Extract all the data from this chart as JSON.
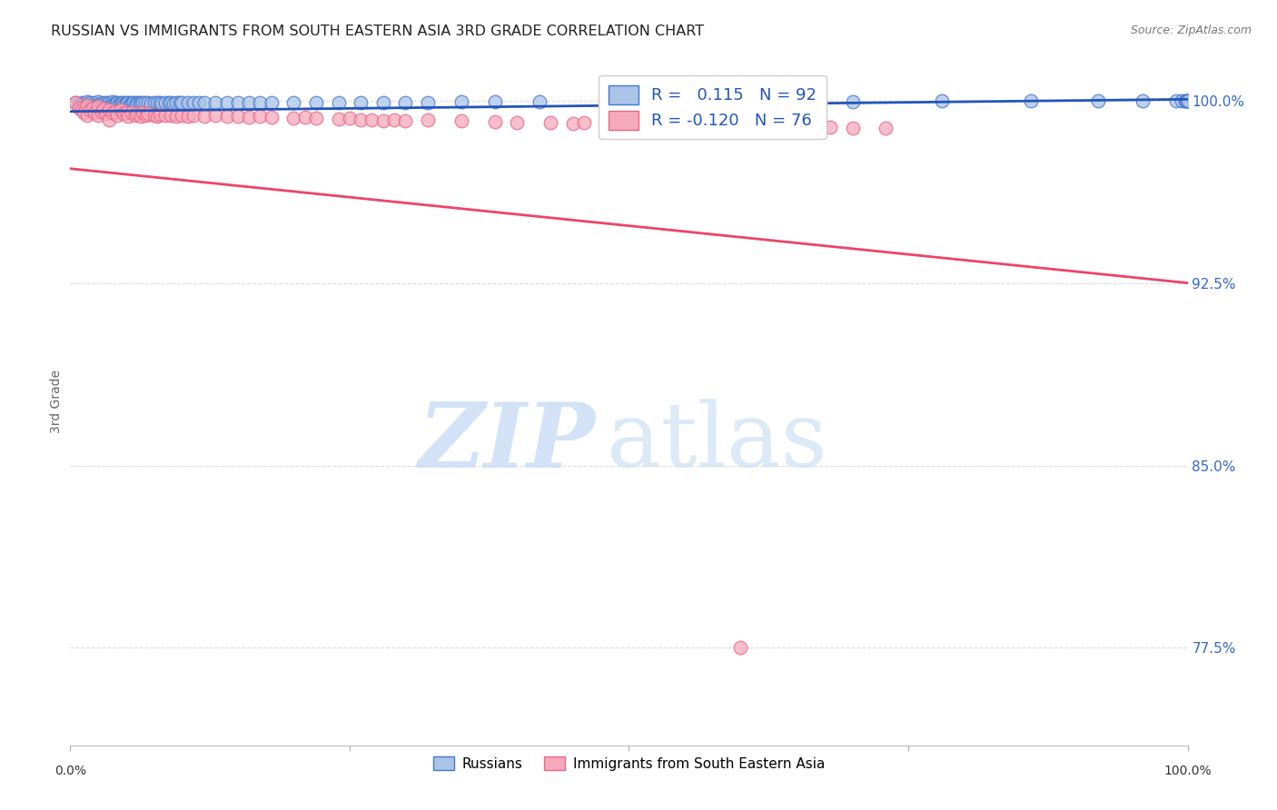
{
  "title": "RUSSIAN VS IMMIGRANTS FROM SOUTH EASTERN ASIA 3RD GRADE CORRELATION CHART",
  "source": "Source: ZipAtlas.com",
  "ylabel": "3rd Grade",
  "ytick_labels": [
    "100.0%",
    "92.5%",
    "85.0%",
    "77.5%"
  ],
  "ytick_values": [
    1.0,
    0.925,
    0.85,
    0.775
  ],
  "xlim": [
    0.0,
    1.0
  ],
  "ylim": [
    0.735,
    1.018
  ],
  "blue_R": 0.115,
  "blue_N": 92,
  "pink_R": -0.12,
  "pink_N": 76,
  "blue_color": "#aac4e8",
  "pink_color": "#f4aabc",
  "blue_edge_color": "#4477cc",
  "pink_edge_color": "#ee6688",
  "blue_line_color": "#2255bb",
  "pink_line_color": "#ee4466",
  "legend_label_blue": "Russians",
  "legend_label_pink": "Immigrants from South Eastern Asia",
  "blue_line_y0": 0.9955,
  "blue_line_y1": 1.0005,
  "pink_line_y0": 0.972,
  "pink_line_y1": 0.925,
  "blue_x": [
    0.005,
    0.008,
    0.01,
    0.012,
    0.015,
    0.015,
    0.018,
    0.02,
    0.022,
    0.022,
    0.025,
    0.025,
    0.027,
    0.028,
    0.03,
    0.03,
    0.032,
    0.033,
    0.035,
    0.035,
    0.038,
    0.038,
    0.04,
    0.04,
    0.042,
    0.043,
    0.045,
    0.045,
    0.047,
    0.048,
    0.05,
    0.05,
    0.052,
    0.053,
    0.055,
    0.055,
    0.057,
    0.058,
    0.06,
    0.06,
    0.062,
    0.063,
    0.065,
    0.067,
    0.07,
    0.072,
    0.075,
    0.078,
    0.08,
    0.082,
    0.085,
    0.088,
    0.09,
    0.092,
    0.095,
    0.098,
    0.1,
    0.105,
    0.11,
    0.115,
    0.12,
    0.13,
    0.14,
    0.15,
    0.16,
    0.17,
    0.18,
    0.2,
    0.22,
    0.24,
    0.26,
    0.28,
    0.3,
    0.32,
    0.35,
    0.38,
    0.42,
    0.48,
    0.55,
    0.62,
    0.7,
    0.78,
    0.86,
    0.92,
    0.96,
    0.99,
    0.995,
    0.998,
    0.999,
    0.999,
    1.0,
    1.0
  ],
  "blue_y": [
    0.999,
    0.9985,
    0.9992,
    0.9988,
    0.9995,
    0.998,
    0.999,
    0.9985,
    0.9992,
    0.9978,
    0.9995,
    0.9982,
    0.9988,
    0.9975,
    0.9993,
    0.998,
    0.999,
    0.9985,
    0.9992,
    0.9978,
    0.9994,
    0.9982,
    0.999,
    0.9985,
    0.9993,
    0.998,
    0.9992,
    0.9988,
    0.999,
    0.9983,
    0.9993,
    0.9988,
    0.999,
    0.9985,
    0.9992,
    0.9988,
    0.9993,
    0.9985,
    0.9992,
    0.9987,
    0.9993,
    0.9988,
    0.9991,
    0.999,
    0.9992,
    0.9988,
    0.9993,
    0.999,
    0.9992,
    0.9989,
    0.9993,
    0.999,
    0.9992,
    0.9989,
    0.9993,
    0.999,
    0.9992,
    0.9991,
    0.9993,
    0.999,
    0.9992,
    0.9993,
    0.9992,
    0.9993,
    0.9992,
    0.9993,
    0.9993,
    0.9993,
    0.9992,
    0.9993,
    0.9993,
    0.9993,
    0.9993,
    0.9993,
    0.9994,
    0.9994,
    0.9994,
    0.9995,
    0.9995,
    0.9996,
    0.9996,
    0.9997,
    0.9997,
    0.9998,
    0.9998,
    0.9999,
    0.9999,
    0.9999,
    1.0,
    1.0,
    1.0,
    1.0
  ],
  "pink_x": [
    0.005,
    0.008,
    0.01,
    0.012,
    0.015,
    0.015,
    0.018,
    0.02,
    0.022,
    0.025,
    0.025,
    0.028,
    0.03,
    0.032,
    0.035,
    0.035,
    0.038,
    0.04,
    0.042,
    0.045,
    0.048,
    0.05,
    0.052,
    0.055,
    0.058,
    0.06,
    0.063,
    0.065,
    0.068,
    0.07,
    0.075,
    0.078,
    0.08,
    0.085,
    0.09,
    0.095,
    0.1,
    0.105,
    0.11,
    0.12,
    0.13,
    0.14,
    0.15,
    0.16,
    0.17,
    0.18,
    0.2,
    0.21,
    0.22,
    0.24,
    0.25,
    0.26,
    0.27,
    0.28,
    0.29,
    0.3,
    0.32,
    0.35,
    0.38,
    0.4,
    0.43,
    0.45,
    0.46,
    0.49,
    0.52,
    0.54,
    0.56,
    0.58,
    0.6,
    0.62,
    0.64,
    0.66,
    0.68,
    0.7,
    0.73,
    0.6
  ],
  "pink_y": [
    0.999,
    0.997,
    0.996,
    0.995,
    0.998,
    0.994,
    0.996,
    0.997,
    0.995,
    0.9975,
    0.994,
    0.9955,
    0.9965,
    0.9945,
    0.996,
    0.992,
    0.995,
    0.9955,
    0.994,
    0.996,
    0.9945,
    0.995,
    0.9935,
    0.995,
    0.994,
    0.9948,
    0.9935,
    0.995,
    0.9938,
    0.9945,
    0.994,
    0.9935,
    0.9942,
    0.9938,
    0.994,
    0.9935,
    0.9938,
    0.9935,
    0.994,
    0.9935,
    0.9938,
    0.9936,
    0.9935,
    0.9932,
    0.9935,
    0.993,
    0.9928,
    0.993,
    0.9928,
    0.9925,
    0.9928,
    0.9922,
    0.992,
    0.9918,
    0.9922,
    0.9918,
    0.992,
    0.9915,
    0.9912,
    0.991,
    0.9908,
    0.9906,
    0.991,
    0.9908,
    0.9906,
    0.9905,
    0.9903,
    0.9902,
    0.99,
    0.9898,
    0.9895,
    0.9893,
    0.989,
    0.9888,
    0.9885,
    0.775
  ]
}
